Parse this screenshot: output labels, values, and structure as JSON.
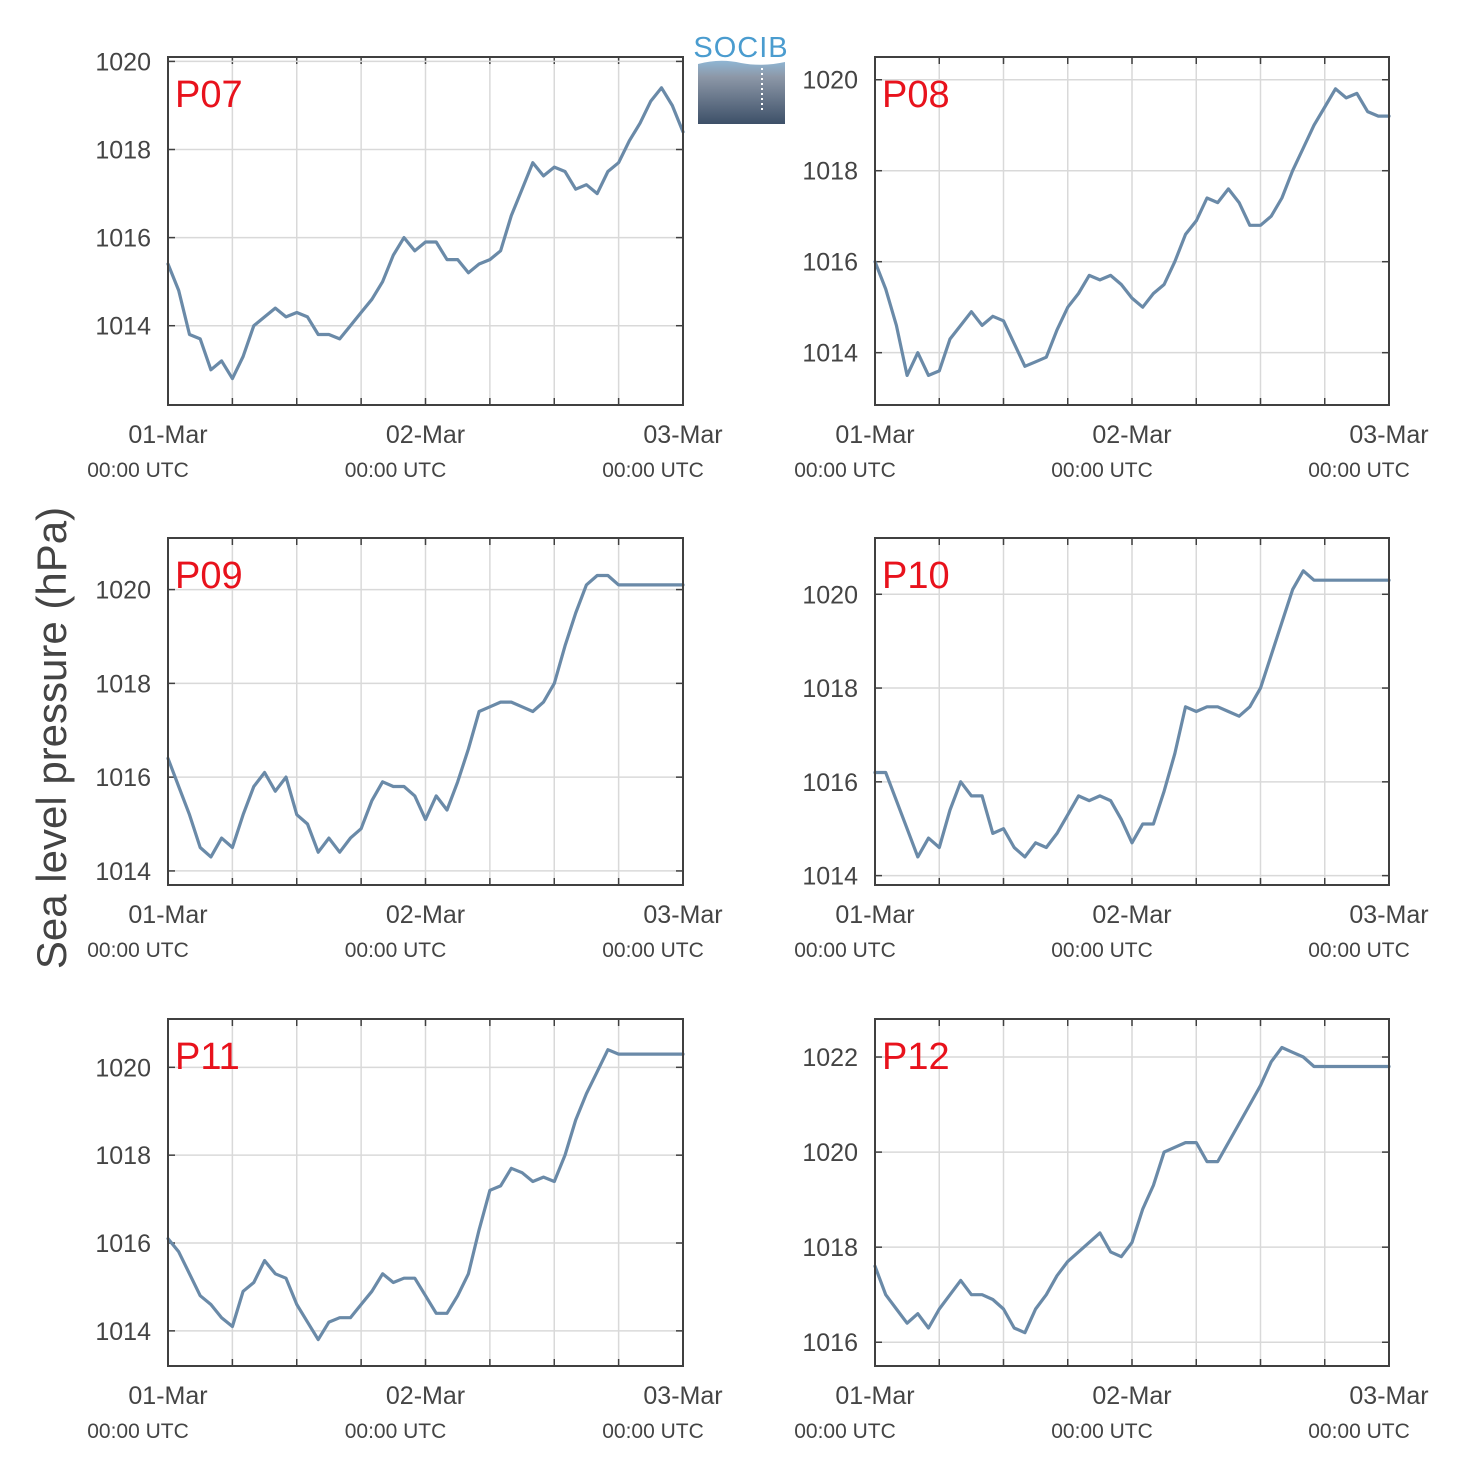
{
  "figure": {
    "ylabel": "Sea level pressure (hPa)",
    "logo_text": "SOCIB",
    "line_color": "#6a8aa8",
    "station_label_color": "#e8121c",
    "axis_color": "#404040",
    "grid_color": "#d9d9d9"
  },
  "chart_data": [
    {
      "type": "line",
      "station": "P07",
      "x_hours": [
        0,
        1,
        2,
        3,
        4,
        5,
        6,
        7,
        8,
        9,
        10,
        11,
        12,
        13,
        14,
        15,
        16,
        17,
        18,
        19,
        20,
        21,
        22,
        23,
        24,
        25,
        26,
        27,
        28,
        29,
        30,
        31,
        32,
        33,
        34,
        35,
        36,
        37,
        38,
        39,
        40,
        41,
        42,
        43,
        44,
        45,
        46,
        47,
        48
      ],
      "y": [
        1015.4,
        1014.8,
        1013.8,
        1013.7,
        1013.0,
        1013.2,
        1012.8,
        1013.3,
        1014.0,
        1014.2,
        1014.4,
        1014.2,
        1014.3,
        1014.2,
        1013.8,
        1013.8,
        1013.7,
        1014.0,
        1014.3,
        1014.6,
        1015.0,
        1015.6,
        1016.0,
        1015.7,
        1015.9,
        1015.9,
        1015.5,
        1015.5,
        1015.2,
        1015.4,
        1015.5,
        1015.7,
        1016.5,
        1017.1,
        1017.7,
        1017.4,
        1017.6,
        1017.5,
        1017.1,
        1017.2,
        1017.0,
        1017.5,
        1017.7,
        1018.2,
        1018.6,
        1019.1,
        1019.4,
        1019.0,
        1018.4
      ],
      "xlim": [
        0,
        48
      ],
      "ylim": [
        1012.2,
        1020.1
      ],
      "yticks": [
        1014,
        1016,
        1018,
        1020
      ],
      "xticks": [
        {
          "main": "01-Mar",
          "sub": "00:00 UTC"
        },
        {
          "main": "02-Mar",
          "sub": "00:00 UTC"
        },
        {
          "main": "03-Mar",
          "sub": "00:00 UTC"
        }
      ]
    },
    {
      "type": "line",
      "station": "P08",
      "x_hours": [
        0,
        1,
        2,
        3,
        4,
        5,
        6,
        7,
        8,
        9,
        10,
        11,
        12,
        13,
        14,
        15,
        16,
        17,
        18,
        19,
        20,
        21,
        22,
        23,
        24,
        25,
        26,
        27,
        28,
        29,
        30,
        31,
        32,
        33,
        34,
        35,
        36,
        37,
        38,
        39,
        40,
        41,
        42,
        43,
        44,
        45,
        46,
        47,
        48
      ],
      "y": [
        1016.0,
        1015.4,
        1014.6,
        1013.5,
        1014.0,
        1013.5,
        1013.6,
        1014.3,
        1014.6,
        1014.9,
        1014.6,
        1014.8,
        1014.7,
        1014.2,
        1013.7,
        1013.8,
        1013.9,
        1014.5,
        1015.0,
        1015.3,
        1015.7,
        1015.6,
        1015.7,
        1015.5,
        1015.2,
        1015.0,
        1015.3,
        1015.5,
        1016.0,
        1016.6,
        1016.9,
        1017.4,
        1017.3,
        1017.6,
        1017.3,
        1016.8,
        1016.8,
        1017.0,
        1017.4,
        1018.0,
        1018.5,
        1019.0,
        1019.4,
        1019.8,
        1019.6,
        1019.7,
        1019.3,
        1019.2,
        1019.2
      ],
      "xlim": [
        0,
        48
      ],
      "ylim": [
        1012.85,
        1020.5
      ],
      "yticks": [
        1014,
        1016,
        1018,
        1020
      ],
      "xticks": [
        {
          "main": "01-Mar",
          "sub": "00:00 UTC"
        },
        {
          "main": "02-Mar",
          "sub": "00:00 UTC"
        },
        {
          "main": "03-Mar",
          "sub": "00:00 UTC"
        }
      ]
    },
    {
      "type": "line",
      "station": "P09",
      "x_hours": [
        0,
        1,
        2,
        3,
        4,
        5,
        6,
        7,
        8,
        9,
        10,
        11,
        12,
        13,
        14,
        15,
        16,
        17,
        18,
        19,
        20,
        21,
        22,
        23,
        24,
        25,
        26,
        27,
        28,
        29,
        30,
        31,
        32,
        33,
        34,
        35,
        36,
        37,
        38,
        39,
        40,
        41,
        42,
        43,
        44,
        45,
        46,
        47,
        48
      ],
      "y": [
        1016.4,
        1015.8,
        1015.2,
        1014.5,
        1014.3,
        1014.7,
        1014.5,
        1015.2,
        1015.8,
        1016.1,
        1015.7,
        1016.0,
        1015.2,
        1015.0,
        1014.4,
        1014.7,
        1014.4,
        1014.7,
        1014.9,
        1015.5,
        1015.9,
        1015.8,
        1015.8,
        1015.6,
        1015.1,
        1015.6,
        1015.3,
        1015.9,
        1016.6,
        1017.4,
        1017.5,
        1017.6,
        1017.6,
        1017.5,
        1017.4,
        1017.6,
        1018.0,
        1018.8,
        1019.5,
        1020.1,
        1020.3,
        1020.3,
        1020.1,
        1020.1,
        1020.1,
        1020.1,
        1020.1,
        1020.1,
        1020.1
      ],
      "xlim": [
        0,
        48
      ],
      "ylim": [
        1013.7,
        1021.1
      ],
      "yticks": [
        1014,
        1016,
        1018,
        1020
      ],
      "xticks": [
        {
          "main": "01-Mar",
          "sub": "00:00 UTC"
        },
        {
          "main": "02-Mar",
          "sub": "00:00 UTC"
        },
        {
          "main": "03-Mar",
          "sub": "00:00 UTC"
        }
      ]
    },
    {
      "type": "line",
      "station": "P10",
      "x_hours": [
        0,
        1,
        2,
        3,
        4,
        5,
        6,
        7,
        8,
        9,
        10,
        11,
        12,
        13,
        14,
        15,
        16,
        17,
        18,
        19,
        20,
        21,
        22,
        23,
        24,
        25,
        26,
        27,
        28,
        29,
        30,
        31,
        32,
        33,
        34,
        35,
        36,
        37,
        38,
        39,
        40,
        41,
        42,
        43,
        44,
        45,
        46,
        47,
        48
      ],
      "y": [
        1016.2,
        1016.2,
        1015.6,
        1015.0,
        1014.4,
        1014.8,
        1014.6,
        1015.4,
        1016.0,
        1015.7,
        1015.7,
        1014.9,
        1015.0,
        1014.6,
        1014.4,
        1014.7,
        1014.6,
        1014.9,
        1015.3,
        1015.7,
        1015.6,
        1015.7,
        1015.6,
        1015.2,
        1014.7,
        1015.1,
        1015.1,
        1015.8,
        1016.6,
        1017.6,
        1017.5,
        1017.6,
        1017.6,
        1017.5,
        1017.4,
        1017.6,
        1018.0,
        1018.7,
        1019.4,
        1020.1,
        1020.5,
        1020.3,
        1020.3,
        1020.3,
        1020.3,
        1020.3,
        1020.3,
        1020.3,
        1020.3
      ],
      "xlim": [
        0,
        48
      ],
      "ylim": [
        1013.8,
        1021.2
      ],
      "yticks": [
        1014,
        1016,
        1018,
        1020
      ],
      "xticks": [
        {
          "main": "01-Mar",
          "sub": "00:00 UTC"
        },
        {
          "main": "02-Mar",
          "sub": "00:00 UTC"
        },
        {
          "main": "03-Mar",
          "sub": "00:00 UTC"
        }
      ]
    },
    {
      "type": "line",
      "station": "P11",
      "x_hours": [
        0,
        1,
        2,
        3,
        4,
        5,
        6,
        7,
        8,
        9,
        10,
        11,
        12,
        13,
        14,
        15,
        16,
        17,
        18,
        19,
        20,
        21,
        22,
        23,
        24,
        25,
        26,
        27,
        28,
        29,
        30,
        31,
        32,
        33,
        34,
        35,
        36,
        37,
        38,
        39,
        40,
        41,
        42,
        43,
        44,
        45,
        46,
        47,
        48
      ],
      "y": [
        1016.1,
        1015.8,
        1015.3,
        1014.8,
        1014.6,
        1014.3,
        1014.1,
        1014.9,
        1015.1,
        1015.6,
        1015.3,
        1015.2,
        1014.6,
        1014.2,
        1013.8,
        1014.2,
        1014.3,
        1014.3,
        1014.6,
        1014.9,
        1015.3,
        1015.1,
        1015.2,
        1015.2,
        1014.8,
        1014.4,
        1014.4,
        1014.8,
        1015.3,
        1016.3,
        1017.2,
        1017.3,
        1017.7,
        1017.6,
        1017.4,
        1017.5,
        1017.4,
        1018.0,
        1018.8,
        1019.4,
        1019.9,
        1020.4,
        1020.3,
        1020.3,
        1020.3,
        1020.3,
        1020.3,
        1020.3,
        1020.3
      ],
      "xlim": [
        0,
        48
      ],
      "ylim": [
        1013.2,
        1021.1
      ],
      "yticks": [
        1014,
        1016,
        1018,
        1020
      ],
      "xticks": [
        {
          "main": "01-Mar",
          "sub": "00:00 UTC"
        },
        {
          "main": "02-Mar",
          "sub": "00:00 UTC"
        },
        {
          "main": "03-Mar",
          "sub": "00:00 UTC"
        }
      ]
    },
    {
      "type": "line",
      "station": "P12",
      "x_hours": [
        0,
        1,
        2,
        3,
        4,
        5,
        6,
        7,
        8,
        9,
        10,
        11,
        12,
        13,
        14,
        15,
        16,
        17,
        18,
        19,
        20,
        21,
        22,
        23,
        24,
        25,
        26,
        27,
        28,
        29,
        30,
        31,
        32,
        33,
        34,
        35,
        36,
        37,
        38,
        39,
        40,
        41,
        42,
        43,
        44,
        45,
        46,
        47,
        48
      ],
      "y": [
        1017.6,
        1017.0,
        1016.7,
        1016.4,
        1016.6,
        1016.3,
        1016.7,
        1017.0,
        1017.3,
        1017.0,
        1017.0,
        1016.9,
        1016.7,
        1016.3,
        1016.2,
        1016.7,
        1017.0,
        1017.4,
        1017.7,
        1017.9,
        1018.1,
        1018.3,
        1017.9,
        1017.8,
        1018.1,
        1018.8,
        1019.3,
        1020.0,
        1020.1,
        1020.2,
        1020.2,
        1019.8,
        1019.8,
        1020.2,
        1020.6,
        1021.0,
        1021.4,
        1021.9,
        1022.2,
        1022.1,
        1022.0,
        1021.8,
        1021.8,
        1021.8,
        1021.8,
        1021.8,
        1021.8,
        1021.8,
        1021.8
      ],
      "xlim": [
        0,
        48
      ],
      "ylim": [
        1015.5,
        1022.8
      ],
      "yticks": [
        1016,
        1018,
        1020,
        1022
      ],
      "xticks": [
        {
          "main": "01-Mar",
          "sub": "00:00 UTC"
        },
        {
          "main": "02-Mar",
          "sub": "00:00 UTC"
        },
        {
          "main": "03-Mar",
          "sub": "00:00 UTC"
        }
      ]
    }
  ]
}
